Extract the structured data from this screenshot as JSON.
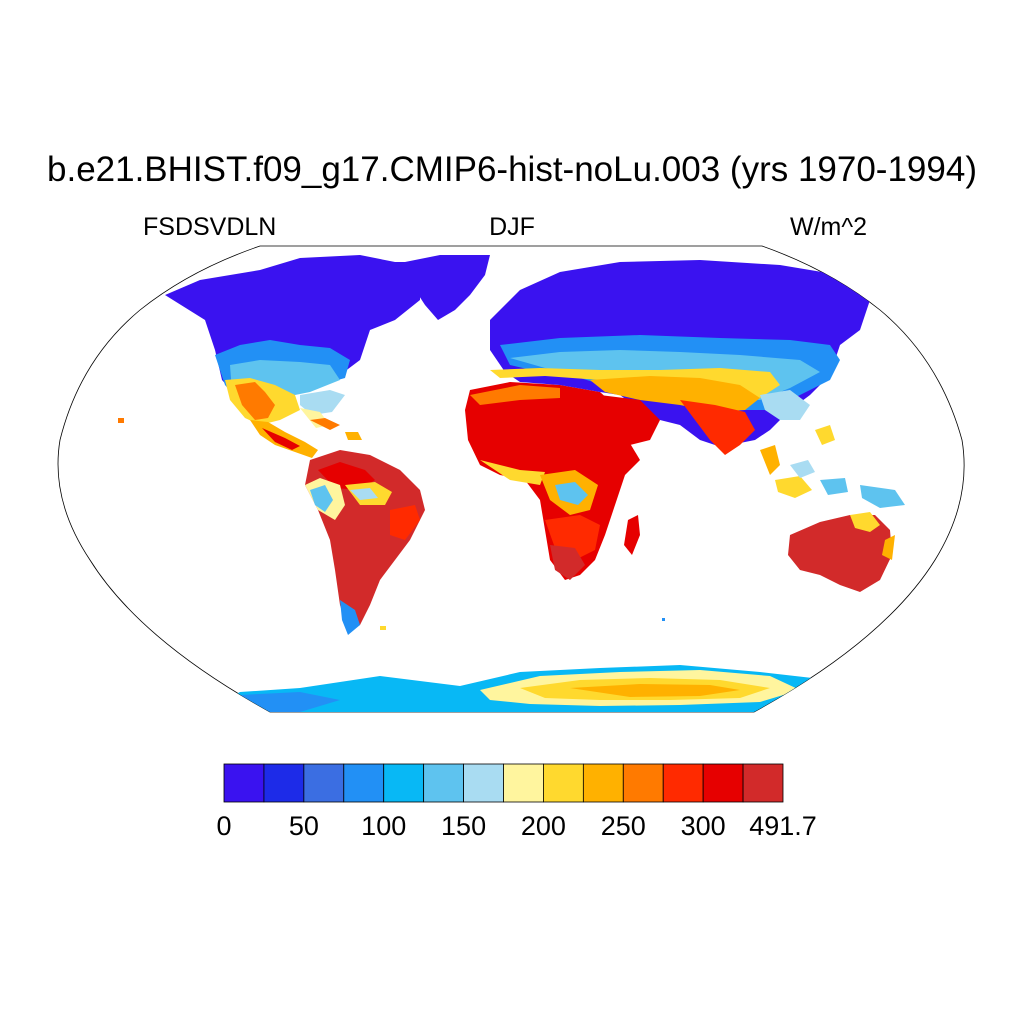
{
  "title": "b.e21.BHIST.f09_g17.CMIP6-hist-noLu.003 (yrs 1970-1994)",
  "subtitles": {
    "left": "FSDSVDLN",
    "center": "DJF",
    "right": "W/m^2"
  },
  "map": {
    "projection": "Robinson",
    "field": "FSDSVDLN",
    "season": "DJF",
    "units": "W/m^2",
    "ocean_color": "#ffffff",
    "coastline_color": "#000000"
  },
  "colorbar": {
    "labels": [
      "0",
      "50",
      "100",
      "150",
      "200",
      "250",
      "300",
      "491.7"
    ],
    "colors": [
      "#3a12f0",
      "#1d2be8",
      "#3b6ee2",
      "#2290f5",
      "#08b8f5",
      "#5ec3ef",
      "#a9dcf2",
      "#fff59e",
      "#ffd92e",
      "#ffb100",
      "#ff7a00",
      "#ff2a00",
      "#e60000",
      "#d22a2a"
    ]
  }
}
